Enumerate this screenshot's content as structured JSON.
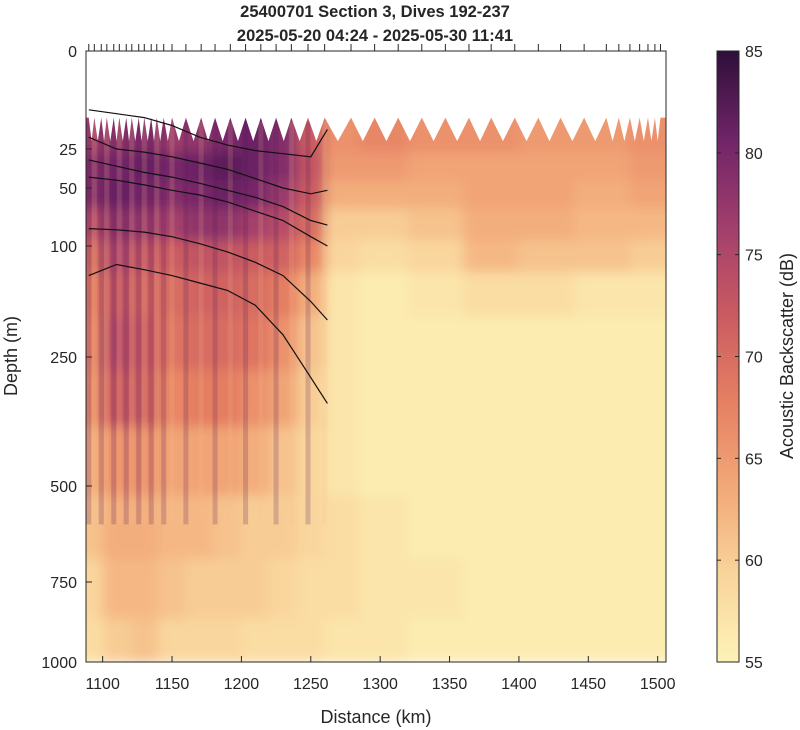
{
  "chart_data": {
    "type": "heatmap",
    "title_line1": "25400701 Section 3, Dives 192-237",
    "title_line2": "2025-05-20 04:24 - 2025-05-30 11:41",
    "xlabel": "Distance (km)",
    "ylabel": "Depth (m)",
    "colorbar_label": "Acoustic Backscatter (dB)",
    "xlim": [
      1088,
      1506
    ],
    "x_ticks": [
      1100,
      1150,
      1200,
      1250,
      1300,
      1350,
      1400,
      1450,
      1500
    ],
    "y_ticks": [
      0,
      25,
      50,
      100,
      250,
      500,
      750,
      1000
    ],
    "y_scale": "nonlinear (stretched near surface)",
    "clim": [
      55,
      85
    ],
    "colorbar_ticks": [
      55,
      60,
      65,
      70,
      75,
      80,
      85
    ],
    "colormap": [
      "#fdf3b7",
      "#f9d49b",
      "#f2a878",
      "#e57f62",
      "#c95a62",
      "#a13e6d",
      "#6f2468",
      "#2e0f3a"
    ],
    "dive_marker_x": [
      1090,
      1094,
      1099,
      1103,
      1108,
      1112,
      1117,
      1121,
      1126,
      1130,
      1135,
      1139,
      1144,
      1150,
      1160,
      1171,
      1181,
      1192,
      1203,
      1214,
      1225,
      1236,
      1248,
      1260,
      1279,
      1296,
      1313,
      1330,
      1347,
      1364,
      1380,
      1397,
      1414,
      1430,
      1447,
      1463,
      1472,
      1480,
      1487,
      1493,
      1498,
      1502
    ],
    "top_blank_depth_m": 17,
    "intensity_grid": {
      "x": [
        1090,
        1110,
        1130,
        1150,
        1170,
        1190,
        1210,
        1230,
        1250,
        1270,
        1300,
        1340,
        1380,
        1420,
        1460,
        1500
      ],
      "depth": [
        20,
        35,
        55,
        80,
        110,
        160,
        230,
        320,
        450,
        600,
        780,
        950
      ],
      "values_db": [
        [
          76,
          78,
          79,
          77,
          78,
          80,
          81,
          79,
          72,
          66,
          67,
          66,
          66,
          65,
          65,
          66
        ],
        [
          79,
          80,
          81,
          80,
          81,
          82,
          81,
          79,
          73,
          65,
          65,
          64,
          64,
          64,
          64,
          65
        ],
        [
          79,
          81,
          80,
          79,
          80,
          81,
          80,
          77,
          72,
          63,
          63,
          63,
          64,
          64,
          63,
          64
        ],
        [
          74,
          78,
          77,
          76,
          78,
          78,
          76,
          74,
          70,
          60,
          60,
          61,
          63,
          63,
          62,
          62
        ],
        [
          70,
          75,
          73,
          72,
          73,
          73,
          72,
          71,
          67,
          59,
          58,
          59,
          62,
          61,
          61,
          60
        ],
        [
          68,
          73,
          71,
          70,
          71,
          71,
          70,
          68,
          63,
          57,
          56,
          57,
          58,
          58,
          57,
          57
        ],
        [
          67,
          74,
          72,
          69,
          70,
          70,
          69,
          66,
          61,
          57,
          56,
          56,
          56,
          56,
          56,
          56
        ],
        [
          66,
          72,
          71,
          67,
          68,
          68,
          66,
          64,
          60,
          57,
          56,
          56,
          56,
          56,
          56,
          56
        ],
        [
          63,
          66,
          66,
          64,
          64,
          64,
          63,
          61,
          59,
          57,
          56,
          56,
          56,
          56,
          56,
          56
        ],
        [
          61,
          63,
          63,
          62,
          62,
          61,
          60,
          60,
          59,
          58,
          57,
          56,
          56,
          56,
          56,
          56
        ],
        [
          59,
          62,
          62,
          61,
          60,
          60,
          60,
          59,
          58,
          58,
          57,
          57,
          56,
          56,
          56,
          56
        ],
        [
          58,
          60,
          61,
          59,
          59,
          59,
          58,
          58,
          58,
          57,
          57,
          56,
          56,
          56,
          56,
          56
        ]
      ]
    },
    "contour_lines": [
      {
        "x": [
          1090,
          1110,
          1130,
          1150,
          1170,
          1190,
          1210,
          1230,
          1250,
          1262
        ],
        "depth": [
          15,
          16,
          17,
          19,
          22,
          24,
          26,
          28,
          30,
          20
        ]
      },
      {
        "x": [
          1090,
          1110,
          1130,
          1150,
          1170,
          1190,
          1210,
          1230,
          1250,
          1262
        ],
        "depth": [
          22,
          25,
          27,
          30,
          34,
          38,
          44,
          50,
          55,
          52
        ]
      },
      {
        "x": [
          1090,
          1110,
          1130,
          1150,
          1170,
          1190,
          1210,
          1230,
          1250,
          1262
        ],
        "depth": [
          32,
          36,
          40,
          43,
          47,
          52,
          58,
          66,
          78,
          82
        ]
      },
      {
        "x": [
          1090,
          1110,
          1130,
          1150,
          1170,
          1190,
          1210,
          1230,
          1250,
          1262
        ],
        "depth": [
          43,
          45,
          48,
          52,
          56,
          62,
          70,
          78,
          92,
          100
        ]
      },
      {
        "x": [
          1090,
          1110,
          1130,
          1150,
          1170,
          1190,
          1210,
          1230,
          1250,
          1262
        ],
        "depth": [
          85,
          86,
          88,
          92,
          98,
          108,
          122,
          140,
          175,
          200
        ]
      },
      {
        "x": [
          1090,
          1110,
          1130,
          1150,
          1170,
          1190,
          1210,
          1230,
          1250,
          1262
        ],
        "depth": [
          140,
          125,
          132,
          140,
          150,
          160,
          180,
          220,
          290,
          340
        ]
      }
    ]
  }
}
